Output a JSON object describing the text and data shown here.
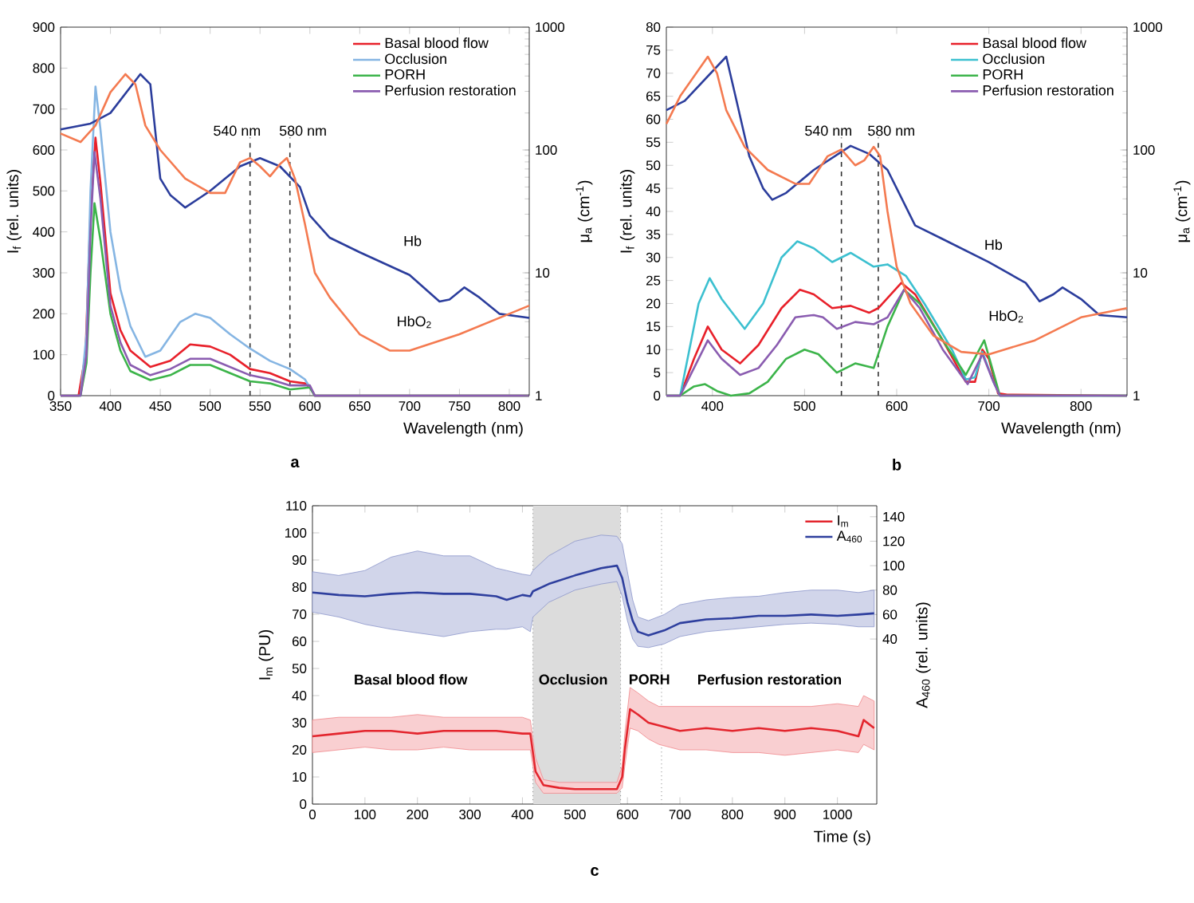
{
  "chart_data": [
    {
      "type": "line",
      "xlabel": "Wavelength (nm)",
      "ylabel": "I$_{f}$ (rel. units)",
      "y2label": "μ$_{a}$ (cm$^{-1}$)",
      "xlim": [
        350,
        820
      ],
      "xticks": [
        350,
        400,
        450,
        500,
        550,
        600,
        650,
        700,
        750,
        800
      ],
      "ylim": [
        0,
        900
      ],
      "yticks": [
        0,
        100,
        200,
        300,
        400,
        500,
        600,
        700,
        800,
        900
      ],
      "y2lim": [
        1,
        1000
      ],
      "y2ticks": [
        1,
        10,
        100,
        1000
      ],
      "log": "y2",
      "legend": "top right",
      "series": [
        {
          "name": "Basal blood flow",
          "color": "#e8202a",
          "x": [
            350,
            368,
            375,
            380,
            385,
            390,
            400,
            410,
            420,
            440,
            460,
            480,
            500,
            520,
            540,
            560,
            580,
            595,
            600,
            605,
            820
          ],
          "values": [
            0,
            0,
            100,
            450,
            630,
            520,
            250,
            160,
            110,
            70,
            85,
            125,
            120,
            100,
            65,
            55,
            35,
            30,
            20,
            0,
            0
          ]
        },
        {
          "name": "Occlusion",
          "color": "#85b5e3",
          "x": [
            350,
            370,
            376,
            380,
            385,
            390,
            400,
            410,
            420,
            435,
            450,
            470,
            485,
            500,
            520,
            540,
            560,
            580,
            595,
            600,
            605,
            820
          ],
          "values": [
            0,
            0,
            150,
            500,
            755,
            650,
            400,
            260,
            170,
            95,
            110,
            180,
            200,
            190,
            150,
            115,
            85,
            65,
            40,
            20,
            0,
            0
          ]
        },
        {
          "name": "PORH",
          "color": "#3cb44a",
          "x": [
            350,
            370,
            376,
            380,
            384,
            390,
            400,
            410,
            420,
            440,
            460,
            480,
            500,
            520,
            540,
            560,
            580,
            600,
            605,
            820
          ],
          "values": [
            0,
            0,
            80,
            300,
            470,
            380,
            200,
            110,
            60,
            38,
            50,
            75,
            75,
            55,
            35,
            30,
            15,
            20,
            0,
            0
          ]
        },
        {
          "name": "Perfusion restoration",
          "color": "#8a5cb0",
          "x": [
            350,
            370,
            376,
            380,
            384,
            390,
            400,
            410,
            420,
            440,
            460,
            480,
            500,
            520,
            540,
            560,
            580,
            600,
            605,
            820
          ],
          "values": [
            0,
            0,
            100,
            400,
            595,
            480,
            220,
            130,
            75,
            50,
            65,
            90,
            90,
            70,
            50,
            40,
            25,
            25,
            0,
            0
          ]
        },
        {
          "color": "#2b3d9c",
          "axis": "y2",
          "x": [
            350,
            380,
            400,
            430,
            440,
            450,
            460,
            475,
            500,
            530,
            550,
            570,
            590,
            600,
            620,
            650,
            700,
            730,
            740,
            755,
            770,
            790,
            820
          ],
          "values": [
            147,
            164,
            200,
            414,
            343,
            58.5,
            43,
            34,
            46.4,
            73.6,
            85.8,
            73.6,
            50,
            29.3,
            19.3,
            14.7,
            9.6,
            5.84,
            6.06,
            7.6,
            6.3,
            4.64,
            4.3
          ]
        },
        {
          "color": "#f47a50",
          "axis": "y2",
          "x": [
            350,
            370,
            385,
            400,
            415,
            425,
            435,
            450,
            475,
            500,
            515,
            530,
            540,
            550,
            560,
            570,
            577,
            585,
            595,
            605,
            620,
            650,
            680,
            700,
            750,
            800,
            820
          ],
          "values": [
            136,
            116,
            158,
            295,
            414,
            343,
            158,
            100,
            58.5,
            44.7,
            44.7,
            79.4,
            86,
            73.6,
            60.9,
            76.6,
            86,
            58.5,
            25.1,
            10,
            6.3,
            3.16,
            2.33,
            2.33,
            3.16,
            4.64,
            5.41
          ]
        }
      ],
      "ref_lines": [
        {
          "axis": "x",
          "value": 540,
          "label": "540 nm",
          "line_style": "dashed",
          "color": "#333333"
        },
        {
          "axis": "x",
          "value": 580,
          "label": "580 nm",
          "line_style": "dashed",
          "color": "#333333"
        }
      ],
      "annotations": [
        "Hb",
        "HbO$_{2}$",
        "a"
      ]
    },
    {
      "type": "line",
      "xlabel": "Wavelength (nm)",
      "ylabel": "I$_{f}$ (rel. units)",
      "y2label": "μ$_{a}$ (cm$^{-1}$)",
      "xlim": [
        350,
        850
      ],
      "xticks": [
        400,
        500,
        600,
        700,
        800
      ],
      "ylim": [
        0,
        80
      ],
      "yticks": [
        0,
        5,
        10,
        15,
        20,
        25,
        30,
        35,
        40,
        45,
        50,
        55,
        60,
        65,
        70,
        75,
        80
      ],
      "y2lim": [
        1,
        1000
      ],
      "y2ticks": [
        1,
        10,
        100,
        1000
      ],
      "log": "y2",
      "legend": "top right",
      "series": [
        {
          "name": "Basal blood flow",
          "color": "#e8202a",
          "x": [
            350,
            365,
            380,
            395,
            410,
            430,
            450,
            475,
            495,
            510,
            530,
            550,
            570,
            580,
            605,
            620,
            650,
            675,
            685,
            693,
            700,
            710,
            720,
            850
          ],
          "values": [
            0,
            0,
            8,
            15,
            10,
            7,
            11,
            19,
            23,
            22,
            19,
            19.5,
            18,
            19,
            24.5,
            22,
            12,
            3,
            3,
            10,
            8,
            0.5,
            0.2,
            0
          ]
        },
        {
          "name": "Occlusion",
          "color": "#3cc0d0",
          "x": [
            350,
            365,
            385,
            397,
            410,
            435,
            455,
            475,
            492,
            510,
            530,
            550,
            575,
            590,
            610,
            630,
            660,
            675,
            685,
            693,
            705,
            712,
            850
          ],
          "values": [
            0,
            0,
            20,
            25.5,
            21,
            14.5,
            20,
            30,
            33.5,
            32,
            29,
            31,
            28,
            28.5,
            26,
            20,
            10,
            3.5,
            4,
            9.5,
            3,
            0,
            0
          ]
        },
        {
          "name": "PORH",
          "color": "#3cb44a",
          "x": [
            350,
            365,
            380,
            392,
            405,
            420,
            440,
            460,
            480,
            500,
            515,
            535,
            555,
            575,
            590,
            608,
            625,
            650,
            675,
            695,
            705,
            712,
            850
          ],
          "values": [
            0,
            0,
            2,
            2.5,
            1,
            0,
            0.5,
            3,
            8,
            10,
            9,
            5,
            7,
            6,
            15,
            23,
            20,
            12,
            4.5,
            12,
            5,
            0,
            0
          ]
        },
        {
          "name": "Perfusion restoration",
          "color": "#8a5cb0",
          "x": [
            350,
            365,
            380,
            395,
            410,
            430,
            450,
            470,
            490,
            510,
            520,
            535,
            555,
            575,
            590,
            608,
            625,
            650,
            677,
            693,
            705,
            712,
            850
          ],
          "values": [
            0,
            0,
            6,
            12,
            8,
            4.5,
            6,
            11,
            17,
            17.5,
            17,
            14.5,
            16,
            15.5,
            17,
            23,
            19,
            10,
            2.5,
            9,
            3,
            0,
            0
          ]
        },
        {
          "color": "#2b3d9c",
          "axis": "y2",
          "x": [
            350,
            370,
            415,
            425,
            440,
            455,
            465,
            480,
            510,
            550,
            570,
            590,
            600,
            620,
            650,
            700,
            740,
            755,
            770,
            780,
            800,
            820,
            850
          ],
          "values": [
            211,
            251,
            575,
            274,
            89,
            48.7,
            39.3,
            44.7,
            68.8,
            108,
            93,
            68.8,
            48.7,
            24.3,
            18.8,
            12.2,
            8.28,
            5.86,
            6.68,
            7.6,
            6.12,
            4.53,
            4.34
          ]
        },
        {
          "color": "#f47a50",
          "axis": "y2",
          "x": [
            350,
            365,
            395,
            405,
            415,
            435,
            460,
            490,
            505,
            525,
            540,
            555,
            565,
            575,
            582,
            590,
            600,
            615,
            640,
            670,
            700,
            750,
            800,
            850
          ],
          "values": [
            163,
            274,
            575,
            421,
            211,
            106,
            68.8,
            53,
            53,
            89,
            101,
            75,
            82.5,
            106,
            89,
            31.6,
            11.2,
            5.62,
            3.07,
            2.27,
            2.17,
            2.82,
            4.34,
            5.16
          ]
        }
      ],
      "ref_lines": [
        {
          "axis": "x",
          "value": 540,
          "label": "540 nm",
          "line_style": "dashed",
          "color": "#333333"
        },
        {
          "axis": "x",
          "value": 580,
          "label": "580 nm",
          "line_style": "dashed",
          "color": "#333333"
        }
      ],
      "annotations": [
        "Hb",
        "HbO$_{2}$",
        "b"
      ]
    },
    {
      "type": "line",
      "xlabel": "Time (s)",
      "ylabel": "I$_{m}$ (PU)",
      "y2label": "A$_{460}$ (rel. units)",
      "xlim": [
        0,
        1075
      ],
      "xticks": [
        0,
        100,
        200,
        300,
        400,
        500,
        600,
        700,
        800,
        900,
        1000
      ],
      "ylim": [
        0,
        110
      ],
      "yticks": [
        0,
        10,
        20,
        30,
        40,
        50,
        60,
        70,
        80,
        90,
        100,
        110
      ],
      "y2lim": [
        -95,
        149
      ],
      "y2ticks": [
        40,
        60,
        80,
        100,
        120,
        140
      ],
      "legend": "top right",
      "series": [
        {
          "name": "I$_{m}$",
          "color": "#e3262e",
          "x": [
            0,
            50,
            100,
            150,
            200,
            250,
            300,
            350,
            400,
            415,
            425,
            440,
            470,
            500,
            550,
            580,
            590,
            595,
            605,
            620,
            640,
            660,
            700,
            750,
            800,
            850,
            900,
            950,
            1000,
            1040,
            1050,
            1070
          ],
          "values": [
            25,
            26,
            27,
            27,
            26,
            27,
            27,
            27,
            26,
            26,
            12,
            7,
            6,
            5.5,
            5.5,
            5.5,
            10,
            20,
            35,
            33,
            30,
            29,
            27,
            28,
            27,
            28,
            27,
            28,
            27,
            25,
            31,
            28
          ],
          "lower": [
            19,
            20,
            21,
            20,
            20,
            21,
            20,
            20,
            20,
            20,
            8,
            4,
            4,
            4,
            4,
            4,
            6,
            14,
            28,
            27,
            24,
            22,
            20,
            20,
            19,
            19,
            18,
            19,
            20,
            19,
            22,
            20
          ],
          "upper": [
            31,
            32,
            32,
            32,
            33,
            32,
            32,
            32,
            32,
            31,
            17,
            9,
            8,
            8,
            8,
            8,
            14,
            26,
            43,
            41,
            38,
            36,
            36,
            36,
            36,
            36,
            36,
            36,
            37,
            36,
            40,
            38
          ]
        },
        {
          "name": "A$_{460}$",
          "color": "#2e3f9e",
          "axis": "y2",
          "x": [
            0,
            50,
            100,
            150,
            200,
            250,
            300,
            350,
            370,
            400,
            415,
            420,
            450,
            500,
            550,
            580,
            590,
            600,
            610,
            620,
            640,
            670,
            700,
            750,
            800,
            850,
            900,
            950,
            1000,
            1040,
            1070
          ],
          "values": [
            78,
            76,
            75,
            77,
            78,
            77,
            77,
            75,
            72,
            76,
            75,
            79,
            85,
            92,
            98,
            100,
            90,
            70,
            55,
            46,
            43,
            47,
            53,
            56,
            57,
            59,
            59,
            60,
            59,
            60,
            61
          ],
          "lower": [
            62,
            58,
            52,
            48,
            45,
            42,
            46,
            48,
            48,
            50,
            46,
            58,
            70,
            80,
            85,
            87,
            75,
            55,
            40,
            34,
            33,
            36,
            42,
            46,
            48,
            50,
            52,
            53,
            52,
            50,
            50
          ],
          "upper": [
            95,
            92,
            96,
            107,
            112,
            108,
            108,
            98,
            96,
            93,
            92,
            96,
            108,
            120,
            125,
            124,
            118,
            95,
            72,
            58,
            55,
            60,
            68,
            72,
            74,
            75,
            78,
            80,
            80,
            78,
            80
          ]
        }
      ],
      "bands": [
        {
          "axis": "x",
          "from": 420,
          "to": 587,
          "color": "#dcdcdc"
        }
      ],
      "ref_lines": [
        {
          "axis": "x",
          "value": 420,
          "line_style": "dotted",
          "color": "#808080"
        },
        {
          "axis": "x",
          "value": 587,
          "line_style": "dotted",
          "color": "#808080"
        },
        {
          "axis": "x",
          "value": 665,
          "line_style": "dotted",
          "color": "#808080"
        }
      ],
      "annotations": [
        "Basal blood flow",
        "Occlusion",
        "PORH",
        "Perfusion restoration",
        "c"
      ]
    }
  ]
}
